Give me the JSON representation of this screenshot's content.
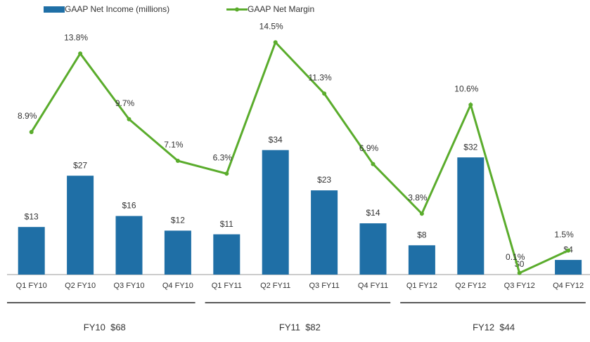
{
  "chart_data": {
    "type": "bar-line",
    "categories": [
      "Q1 FY10",
      "Q2 FY10",
      "Q3 FY10",
      "Q4 FY10",
      "Q1 FY11",
      "Q2 FY11",
      "Q3 FY11",
      "Q4 FY11",
      "Q1 FY12",
      "Q2 FY12",
      "Q3 FY12",
      "Q4 FY12"
    ],
    "series": [
      {
        "name": "GAAP Net Income (millions)",
        "type": "bar",
        "color": "#1f6fa6",
        "values": [
          13,
          27,
          16,
          12,
          11,
          34,
          23,
          14,
          8,
          32,
          0,
          4
        ],
        "value_labels": [
          "$13",
          "$27",
          "$16",
          "$12",
          "$11",
          "$34",
          "$23",
          "$14",
          "$8",
          "$32",
          "$0",
          "$4"
        ]
      },
      {
        "name": "GAAP Net Margin",
        "type": "line",
        "axis": "y2",
        "color": "#5aac2c",
        "values": [
          8.9,
          13.8,
          9.7,
          7.1,
          6.3,
          14.5,
          11.3,
          6.9,
          3.8,
          10.6,
          0.1,
          1.5
        ],
        "value_labels": [
          "8.9%",
          "13.8%",
          "9.7%",
          "7.1%",
          "6.3%",
          "14.5%",
          "11.3%",
          "6.9%",
          "3.8%",
          "10.6%",
          "0.1%",
          "1.5%"
        ]
      }
    ],
    "ylim": [
      0,
      70
    ],
    "y2lim": [
      0,
      16
    ],
    "groups": [
      "FY10  $68",
      "FY11  $82",
      "FY12  $44"
    ],
    "legend": "top-left"
  }
}
